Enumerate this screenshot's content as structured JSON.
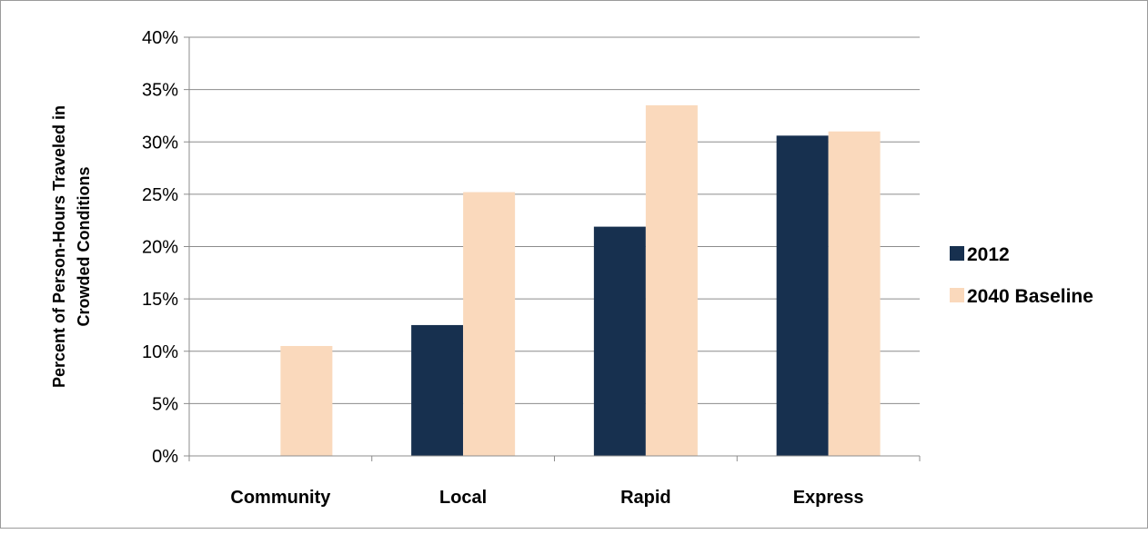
{
  "chart_data": {
    "type": "bar",
    "title": "",
    "xlabel": "",
    "ylabel": "Percent of Person-Hours Traveled in Crowded Conditions",
    "ylabel_lines": [
      "Percent of Person-Hours Traveled in",
      "Crowded Conditions"
    ],
    "categories": [
      "Community",
      "Local",
      "Rapid",
      "Express"
    ],
    "series": [
      {
        "name": "2012",
        "values": [
          0,
          12.5,
          21.9,
          30.6
        ],
        "color": "#17304f"
      },
      {
        "name": "2040 Baseline",
        "values": [
          10.5,
          25.2,
          33.5,
          31.0
        ],
        "color": "#fad9bc"
      }
    ],
    "ylim": [
      0,
      40
    ],
    "yticks": [
      0,
      5,
      10,
      15,
      20,
      25,
      30,
      35,
      40
    ],
    "ytick_labels": [
      "0%",
      "5%",
      "10%",
      "15%",
      "20%",
      "25%",
      "30%",
      "35%",
      "40%"
    ],
    "grid": true,
    "legend_position": "right"
  }
}
